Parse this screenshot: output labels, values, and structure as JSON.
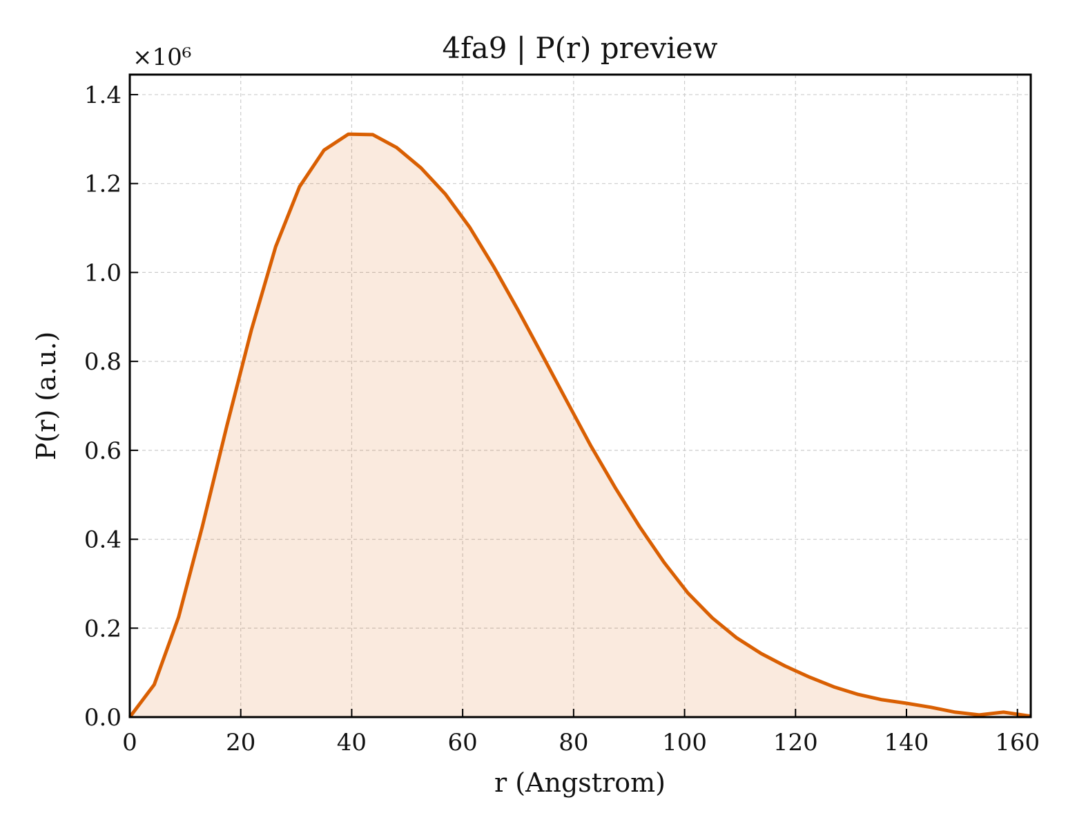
{
  "chart_data": {
    "type": "area",
    "title": "4fa9 | P(r) preview",
    "xlabel": "r (Angstrom)",
    "ylabel": "P(r) (a.u.)",
    "y_multiplier_label": "×10⁶",
    "xlim": [
      0,
      162.4
    ],
    "ylim": [
      0,
      1.445
    ],
    "x_ticks": [
      0,
      20,
      40,
      60,
      80,
      100,
      120,
      140,
      160
    ],
    "x_tick_labels": [
      "0",
      "20",
      "40",
      "60",
      "80",
      "100",
      "120",
      "140",
      "160"
    ],
    "y_ticks": [
      0.0,
      0.2,
      0.4,
      0.6,
      0.8,
      1.0,
      1.2,
      1.4
    ],
    "y_tick_labels": [
      "0.0",
      "0.2",
      "0.4",
      "0.6",
      "0.8",
      "1.0",
      "1.2",
      "1.4"
    ],
    "grid": true,
    "series": [
      {
        "color": "#d95f02",
        "fill_color": "#d95f02",
        "fill_opacity": 0.13,
        "x": [
          0,
          4.4,
          8.8,
          13.1,
          17.5,
          21.9,
          26.3,
          30.6,
          35.0,
          39.4,
          43.8,
          48.1,
          52.5,
          56.9,
          61.3,
          65.6,
          70.0,
          74.4,
          78.8,
          83.1,
          87.5,
          91.9,
          96.3,
          100.6,
          105.0,
          109.4,
          113.8,
          118.1,
          122.5,
          126.9,
          131.3,
          135.6,
          140.0,
          144.4,
          148.8,
          153.1,
          157.5,
          162.4
        ],
        "y": [
          0.0,
          0.073,
          0.225,
          0.43,
          0.655,
          0.87,
          1.058,
          1.193,
          1.275,
          1.311,
          1.31,
          1.281,
          1.235,
          1.176,
          1.101,
          1.013,
          0.915,
          0.813,
          0.71,
          0.61,
          0.516,
          0.428,
          0.348,
          0.279,
          0.223,
          0.178,
          0.143,
          0.115,
          0.09,
          0.068,
          0.051,
          0.039,
          0.031,
          0.022,
          0.011,
          0.005,
          0.011,
          0.002
        ]
      }
    ]
  }
}
